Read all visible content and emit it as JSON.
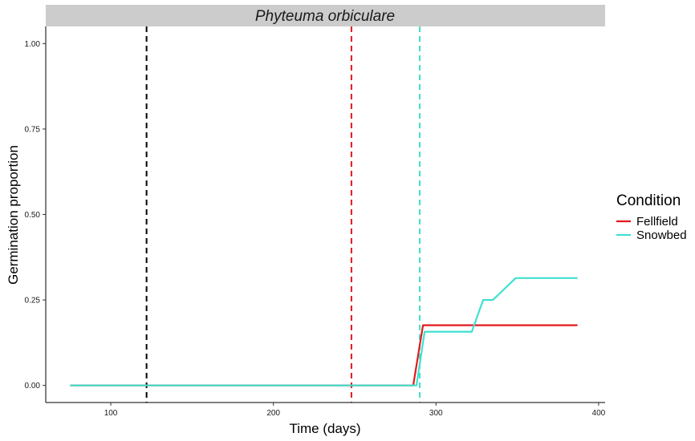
{
  "chart_data": {
    "type": "line",
    "title": "Phyteuma orbiculare",
    "xlabel": "Time (days)",
    "ylabel": "Germination proportion",
    "xlim": [
      60,
      404
    ],
    "ylim": [
      -0.05,
      1.05
    ],
    "x_ticks": [
      100,
      200,
      300,
      400
    ],
    "y_ticks": [
      0.0,
      0.25,
      0.5,
      0.75,
      1.0
    ],
    "x_tick_labels": [
      "100",
      "200",
      "300",
      "400"
    ],
    "y_tick_labels": [
      "0.00",
      "0.25",
      "0.50",
      "0.75",
      "1.00"
    ],
    "grid": false,
    "legend": {
      "title": "Condition",
      "position": "right"
    },
    "series": [
      {
        "name": "Fellfield",
        "color": "#e31a1c",
        "points": [
          [
            75,
            0.0
          ],
          [
            286,
            0.0
          ],
          [
            292,
            0.176
          ],
          [
            387,
            0.176
          ]
        ]
      },
      {
        "name": "Snowbed",
        "color": "#40e0d0",
        "points": [
          [
            75,
            0.0
          ],
          [
            288,
            0.0
          ],
          [
            293,
            0.157
          ],
          [
            322,
            0.157
          ],
          [
            329,
            0.25
          ],
          [
            335,
            0.25
          ],
          [
            349,
            0.314
          ],
          [
            387,
            0.314
          ]
        ]
      }
    ],
    "vlines": [
      {
        "x": 122,
        "color": "#000000"
      },
      {
        "x": 248,
        "color": "#e31a1c"
      },
      {
        "x": 290,
        "color": "#40e0d0"
      }
    ]
  }
}
